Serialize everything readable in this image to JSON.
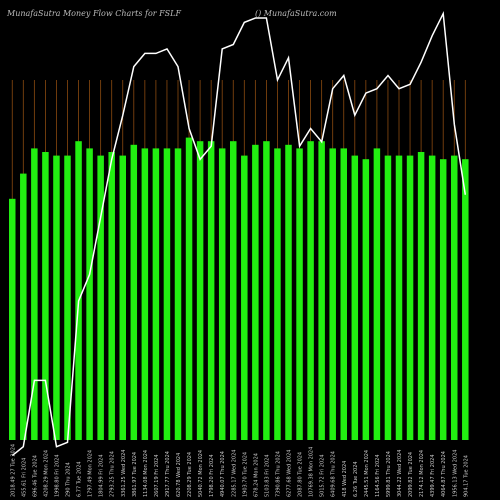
{
  "header": {
    "title": "MunafaSutra  Money Flow  Charts for FSLF",
    "credit": "() MunafaSutra.com"
  },
  "colors": {
    "background": "#000000",
    "bar": "#22ee11",
    "gridline": "#8a4a10",
    "line": "#ffffff",
    "label": "#cccccc"
  },
  "chart_data": {
    "type": "bar",
    "title": "MunafaSutra  Money Flow  Charts for FSLF",
    "grid": "vertical orange lines",
    "legend": "none",
    "ylim": [
      0,
      100
    ],
    "categories": [
      "2018.49 27 Tue 2024",
      "455.61 Fri 2024",
      "696.46 Tue 2024",
      "4208.29 Mon 2024",
      "1998.80 Fri 2024",
      "290 Thu 2024",
      "6.77 Tue 2024",
      "1797.49 Mon 2024",
      "1804.99 Fri 2024",
      "2793.25 Thu 2024",
      "3361.25 Wed 2024",
      "3861.97 Tue 2024",
      "1134.08 Mon 2024",
      "2607.19 Fri 2024",
      "2917.77 Thu 2024",
      "620.78 Wed 2024",
      "2208.29 Tue 2024",
      "5040.72 Mon 2024",
      "1798.20 Fri 2024",
      "4940.07 Thu 2024",
      "2285.17 Wed 2024",
      "1903.70 Tue 2024",
      "678.24 Mon 2024",
      "5103.83 Fri 2024",
      "7390.86 Thu 2024",
      "6277.68 Wed 2024",
      "2087.80 Tue 2024",
      "10769.38 Mon 2024",
      "5015.72 Fri 2024",
      "6409.68 Thu 2024",
      "418 Wed 2024",
      "6.26 Tue 2024",
      "2445.51 Mon 2024",
      "1164.56 Fri 2024",
      "5999.81 Thu 2024",
      "3044.22 Wed 2024",
      "2099.82 Tue 2024",
      "2174.12 Mon 2024",
      "4399.47 Fri 2024",
      "4064.87 Thu 2024",
      "1956.13 Wed 2024",
      "904.17 Tue 2024"
    ],
    "values": [
      67,
      74,
      81,
      80,
      79,
      79,
      83,
      81,
      79,
      80,
      79,
      82,
      81,
      81,
      81,
      81,
      84,
      83,
      83,
      81,
      83,
      79,
      82,
      83,
      81,
      82,
      81,
      83,
      83,
      81,
      81,
      79,
      78,
      81,
      79,
      79,
      79,
      80,
      79,
      78,
      79,
      78
    ],
    "money_flow_line": [
      1,
      3,
      18,
      18,
      3,
      4,
      36,
      42,
      55,
      68,
      78,
      89,
      92,
      92,
      93,
      89,
      75,
      68,
      71,
      93,
      94,
      99,
      100,
      100,
      86,
      91,
      71,
      75,
      72,
      84,
      87,
      78,
      83,
      84,
      87,
      84,
      85,
      90,
      96,
      101,
      76,
      60
    ]
  }
}
